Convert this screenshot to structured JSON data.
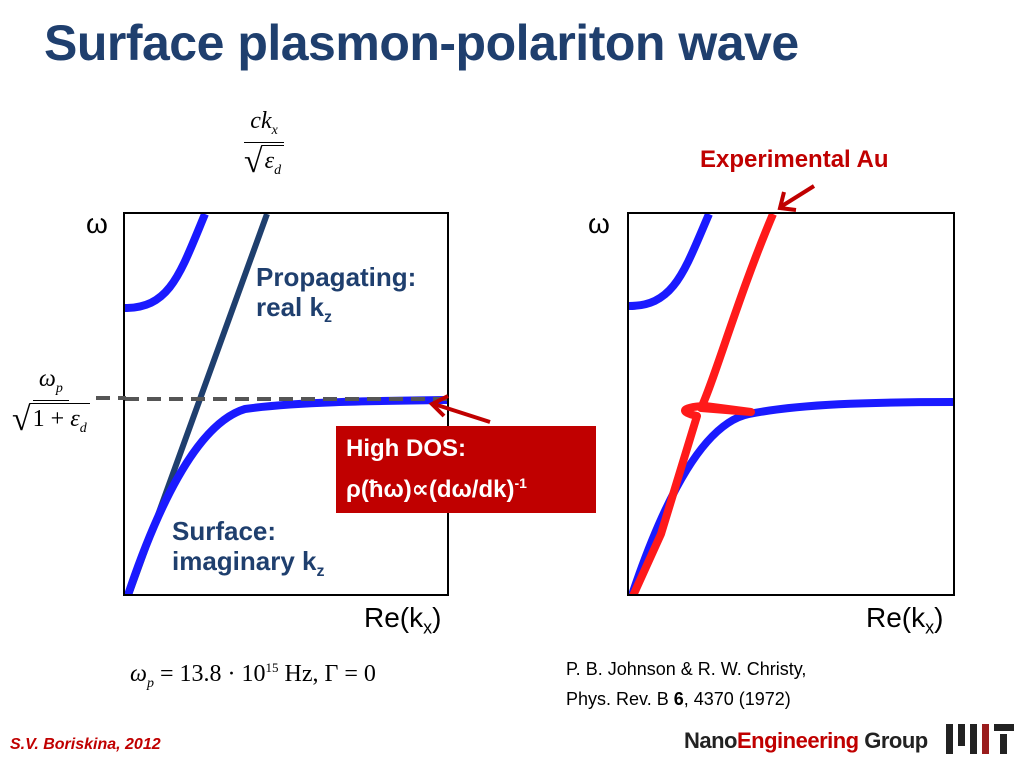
{
  "title": "Surface plasmon-polariton wave",
  "formulas": {
    "top_numerator_c": "c",
    "top_numerator_k": "k",
    "top_numerator_sub": "x",
    "top_denominator_eps": "ε",
    "top_denominator_sub": "d",
    "left_numerator_omega": "ω",
    "left_numerator_sub": "p",
    "left_denominator_one_plus": "1 + ",
    "left_denominator_eps": "ε",
    "left_denominator_sub": "d",
    "bottom_omega": "ω",
    "bottom_sub": "p",
    "bottom_rest": " = 13.8 · 10",
    "bottom_exp": "15",
    "bottom_tail": " Hz,  Γ = 0"
  },
  "left_panel": {
    "y_axis_symbol": "ω",
    "x_axis_base": "Re(k",
    "x_axis_sub": "x",
    "x_axis_close": ")",
    "propagating_line1": "Propagating:",
    "propagating_line2_base": "real k",
    "propagating_line2_sub": "z",
    "surface_line1": "Surface:",
    "surface_line2_base": "imaginary k",
    "surface_line2_sub": "z"
  },
  "right_panel": {
    "y_axis_symbol": "ω",
    "x_axis_base": "Re(k",
    "x_axis_sub": "x",
    "x_axis_close": ")",
    "experimental_label": "Experimental Au"
  },
  "high_dos": {
    "line1": "High DOS:",
    "line2_base": "ρ(ħω)∝(dω/dk)",
    "line2_sup": "-1"
  },
  "reference": {
    "line1": "P. B. Johnson & R. W. Christy,",
    "line2_prefix": "Phys. Rev. B ",
    "line2_volume": "6",
    "line2_suffix": ", 4370 (1972)"
  },
  "footer": {
    "author": "S.V. Boriskina, 2012",
    "logo_nano": "Nano",
    "logo_engineering": "Engineering",
    "logo_group": " Group"
  },
  "colors": {
    "title": "#1f3f6e",
    "curve_blue": "#1a1aff",
    "light_line": "#1f3f6e",
    "experimental_red": "#ff1a1a",
    "accent_red": "#c00000",
    "plasma_dashed": "#555555"
  }
}
